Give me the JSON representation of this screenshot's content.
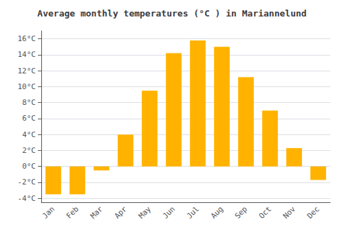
{
  "chart_data": {
    "type": "bar",
    "title": "Average monthly temperatures (°C ) in Mariannelund",
    "categories": [
      "Jan",
      "Feb",
      "Mar",
      "Apr",
      "May",
      "Jun",
      "Jul",
      "Aug",
      "Sep",
      "Oct",
      "Nov",
      "Dec"
    ],
    "values": [
      -3.5,
      -3.5,
      -0.5,
      4.0,
      9.5,
      14.2,
      15.8,
      15.0,
      11.2,
      7.0,
      2.3,
      -1.7
    ],
    "color": "#FFB300",
    "ylim": [
      -4.5,
      17
    ],
    "yticks": [
      {
        "value": -4,
        "label": "-4°C"
      },
      {
        "value": -2,
        "label": "-2°C"
      },
      {
        "value": 0,
        "label": "0°C"
      },
      {
        "value": 2,
        "label": "2°C"
      },
      {
        "value": 4,
        "label": "4°C"
      },
      {
        "value": 6,
        "label": "6°C"
      },
      {
        "value": 8,
        "label": "8°C"
      },
      {
        "value": 10,
        "label": "10°C"
      },
      {
        "value": 12,
        "label": "12°C"
      },
      {
        "value": 14,
        "label": "14°C"
      },
      {
        "value": 16,
        "label": "16°C"
      }
    ],
    "grid": true
  }
}
